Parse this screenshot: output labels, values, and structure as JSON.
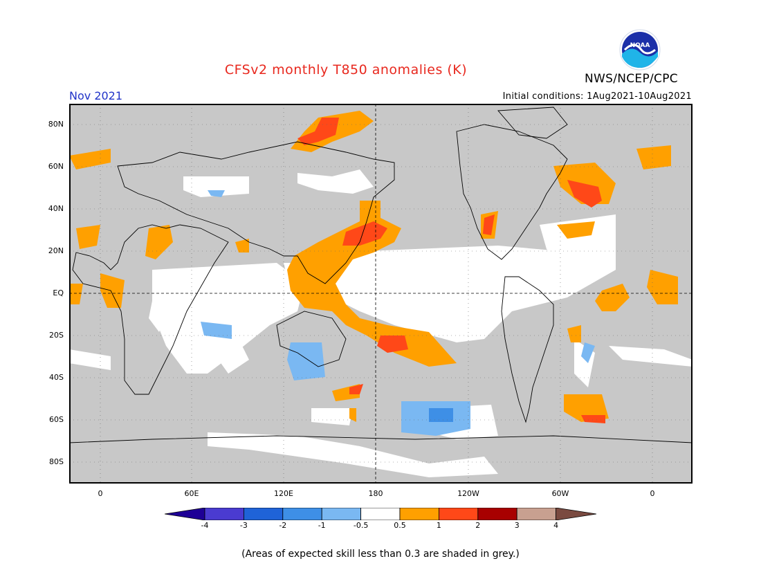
{
  "title": "CFSv2 monthly T850 anomalies (K)",
  "agency": "NWS/NCEP/CPC",
  "logo_text": "NOAA",
  "month": "Nov 2021",
  "initial_conditions": "Initial conditions: 1Aug2021-10Aug2021",
  "latitude_labels": [
    "80N",
    "60N",
    "40N",
    "20N",
    "EQ",
    "20S",
    "40S",
    "60S",
    "80S"
  ],
  "longitude_labels": [
    "0",
    "60E",
    "120E",
    "180",
    "120W",
    "60W",
    "0"
  ],
  "colorbar": {
    "labels": [
      "-4",
      "-3",
      "-2",
      "-1",
      "-0.5",
      "0.5",
      "1",
      "2",
      "3",
      "4"
    ],
    "colors": [
      "#1e0096",
      "#4a3bd0",
      "#1f63d8",
      "#3e8fe6",
      "#7ab8f2",
      "#ffffff",
      "#ffa000",
      "#ff4818",
      "#a80000",
      "#c8a090",
      "#7a4a40"
    ]
  },
  "skill_mask_color": "#c8c8c8",
  "note": "(Areas of expected skill less than 0.3 are shaded in grey.)"
}
